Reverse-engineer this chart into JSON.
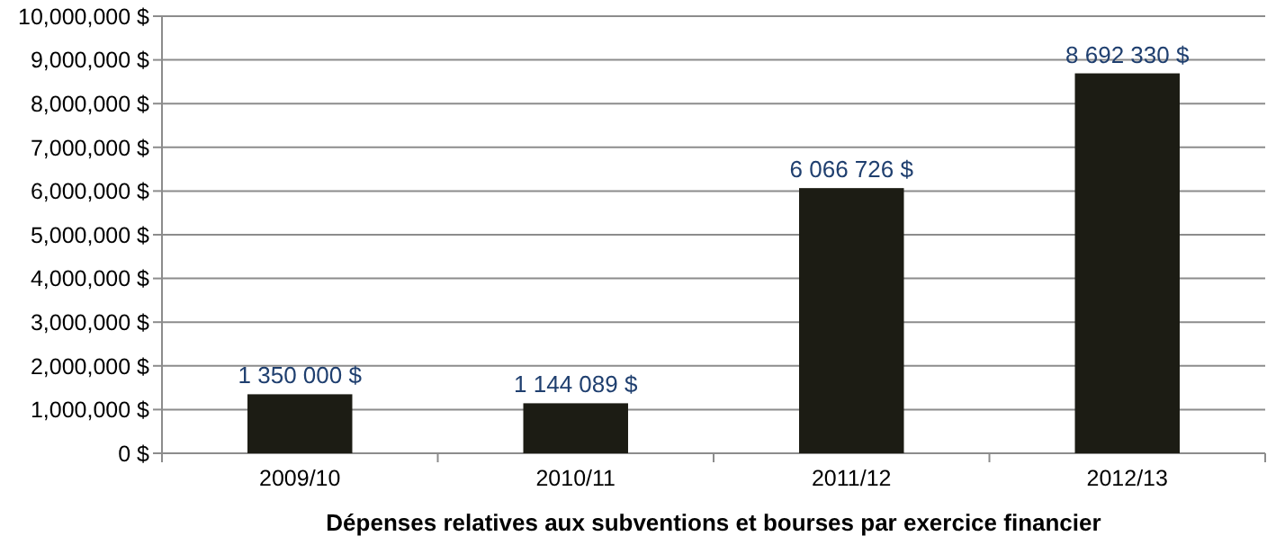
{
  "chart_data": {
    "type": "bar",
    "xlabel": "Dépenses relatives aux subventions et bourses par exercice financier",
    "categories": [
      "2009/10",
      "2010/11",
      "2011/12",
      "2012/13"
    ],
    "values": [
      1350000,
      1144089,
      6066726,
      8692330
    ],
    "value_labels": [
      "1 350 000 $",
      "1 144 089 $",
      "6 066 726 $",
      "8 692 330 $"
    ],
    "color": "#1c1c14",
    "ylim": [
      0,
      10000000
    ],
    "yticks": [
      {
        "value": 0,
        "label": "0 $"
      },
      {
        "value": 1000000,
        "label": "1,000,000 $"
      },
      {
        "value": 2000000,
        "label": "2,000,000 $"
      },
      {
        "value": 3000000,
        "label": "3,000,000 $"
      },
      {
        "value": 4000000,
        "label": "4,000,000 $"
      },
      {
        "value": 5000000,
        "label": "5,000,000 $"
      },
      {
        "value": 6000000,
        "label": "6,000,000 $"
      },
      {
        "value": 7000000,
        "label": "7,000,000 $"
      },
      {
        "value": 8000000,
        "label": "8,000,000 $"
      },
      {
        "value": 9000000,
        "label": "9,000,000 $"
      },
      {
        "value": 10000000,
        "label": "10,000,000 $"
      }
    ],
    "grid": "y"
  }
}
